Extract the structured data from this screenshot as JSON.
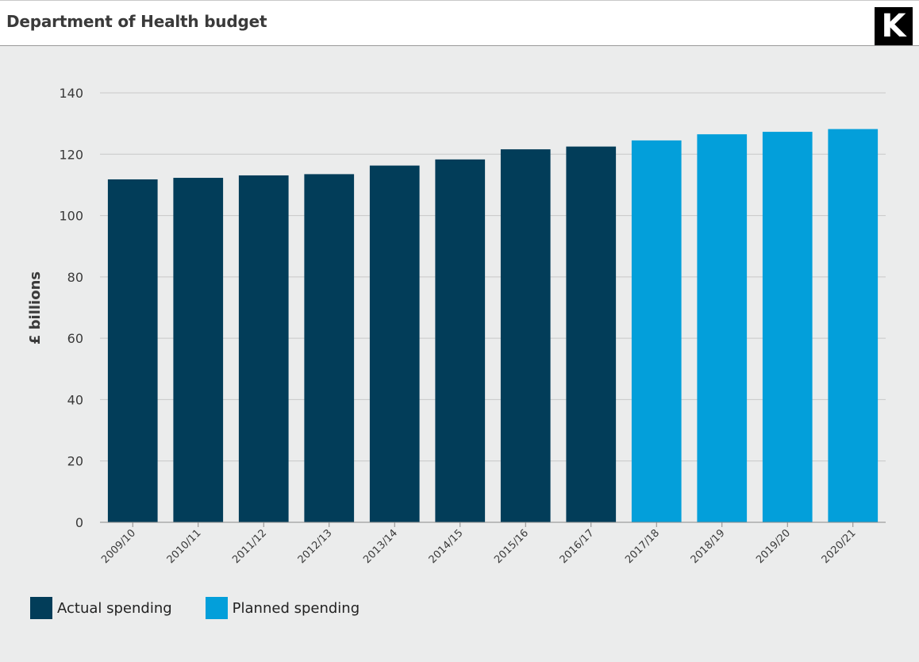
{
  "header": {
    "title": "Department of Health budget",
    "logo_text": "K"
  },
  "colors": {
    "actual": "#023d59",
    "planned": "#039fda",
    "grid": "#c8c8c8",
    "background": "#ebecec"
  },
  "legend": {
    "actual_label": "Actual spending",
    "planned_label": "Planned spending"
  },
  "chart_data": {
    "type": "bar",
    "title": "Department of Health budget",
    "xlabel": "",
    "ylabel": "£ billions",
    "ylim": [
      0,
      140
    ],
    "yticks": [
      0,
      20,
      40,
      60,
      80,
      100,
      120,
      140
    ],
    "grid": true,
    "legend_position": "bottom-left",
    "categories": [
      "2009/10",
      "2010/11",
      "2011/12",
      "2012/13",
      "2013/14",
      "2014/15",
      "2015/16",
      "2016/17",
      "2017/18",
      "2018/19",
      "2019/20",
      "2020/21"
    ],
    "series": [
      {
        "name": "Actual spending",
        "color": "#023d59",
        "values": [
          111.8,
          112.3,
          113.1,
          113.5,
          116.3,
          118.3,
          121.6,
          122.5,
          null,
          null,
          null,
          null
        ]
      },
      {
        "name": "Planned spending",
        "color": "#039fda",
        "values": [
          null,
          null,
          null,
          null,
          null,
          null,
          null,
          null,
          124.5,
          126.5,
          127.3,
          128.2
        ]
      }
    ]
  }
}
